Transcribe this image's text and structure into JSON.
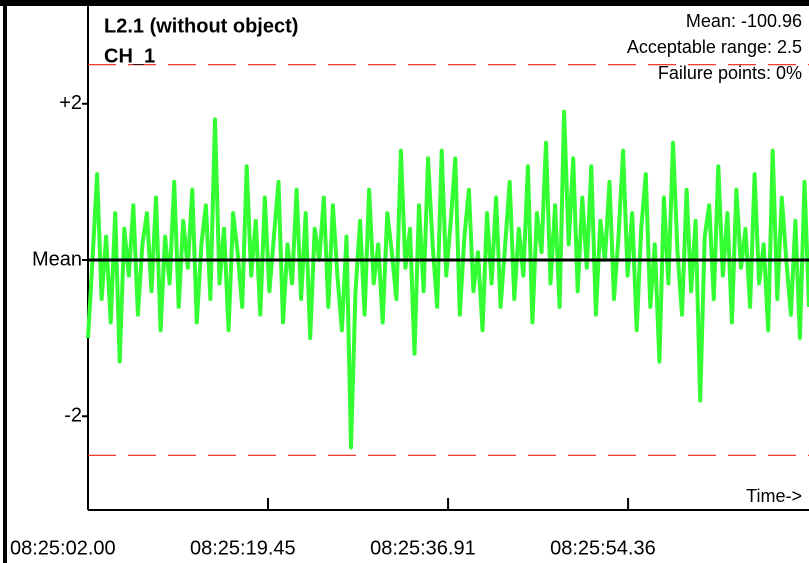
{
  "chart_data": {
    "type": "line",
    "title": "L2.1 (without object)",
    "subtitle": "CH_1",
    "annotations": [
      "Mean: -100.96",
      "Acceptable range: 2.5",
      "Failure points: 0%"
    ],
    "x_label": "Time->",
    "xlim": [
      0,
      69.9
    ],
    "xticks": [
      {
        "value": 0,
        "label": "08:25:02.00"
      },
      {
        "value": 17.45,
        "label": "08:25:19.45"
      },
      {
        "value": 34.91,
        "label": "08:25:36.91"
      },
      {
        "value": 52.36,
        "label": "08:25:54.36"
      }
    ],
    "ylim": [
      -3.2,
      3.2
    ],
    "yticks": [
      {
        "value": 2,
        "label": "+2"
      },
      {
        "value": 0,
        "label": "Mean"
      },
      {
        "value": -2,
        "label": "-2"
      }
    ],
    "limit_lines": [
      2.5,
      -2.5
    ],
    "limit_color": "#e8201c",
    "mean_line": 0,
    "mean_color": "#000000",
    "series": [
      {
        "name": "CH_1",
        "color": "#33ff33",
        "values": [
          -1.0,
          0.0,
          1.1,
          -0.5,
          0.3,
          -0.8,
          0.6,
          -1.3,
          0.4,
          -0.2,
          0.7,
          -0.7,
          0.2,
          0.6,
          -0.4,
          0.8,
          -0.9,
          0.3,
          -0.3,
          1.0,
          -0.6,
          0.5,
          -0.1,
          0.9,
          -0.8,
          0.2,
          0.7,
          -0.5,
          1.8,
          -0.3,
          0.4,
          -0.9,
          0.6,
          0.1,
          -0.6,
          1.2,
          -0.2,
          0.5,
          -0.7,
          0.8,
          -0.4,
          0.3,
          1.0,
          -0.8,
          0.2,
          -0.3,
          0.9,
          -0.5,
          0.6,
          -1.0,
          0.4,
          0.0,
          0.8,
          -0.6,
          0.7,
          -0.2,
          -0.9,
          0.3,
          -2.4,
          -0.4,
          0.5,
          -0.7,
          0.9,
          -0.3,
          0.2,
          -0.8,
          0.6,
          0.1,
          -0.5,
          1.4,
          -0.1,
          0.4,
          -1.2,
          0.7,
          -0.4,
          1.3,
          0.2,
          -0.6,
          1.4,
          -0.2,
          0.5,
          1.3,
          -0.7,
          0.3,
          0.9,
          -0.4,
          0.1,
          -0.9,
          0.6,
          -0.3,
          0.8,
          -0.6,
          0.2,
          1.0,
          -0.5,
          0.4,
          -0.2,
          1.2,
          -0.8,
          0.6,
          0.1,
          1.5,
          -0.3,
          0.7,
          -0.6,
          1.9,
          0.2,
          1.3,
          -0.4,
          0.8,
          -0.1,
          1.2,
          -0.7,
          0.5,
          0.0,
          1.0,
          -0.5,
          0.3,
          1.4,
          -0.2,
          0.6,
          -0.9,
          0.4,
          1.1,
          -0.6,
          0.2,
          -1.3,
          0.8,
          -0.3,
          1.5,
          0.1,
          -0.7,
          0.9,
          -0.4,
          0.5,
          -1.8,
          0.3,
          0.7,
          -0.5,
          1.2,
          -0.2,
          0.6,
          -0.8,
          0.9,
          -0.1,
          0.4,
          -0.6,
          1.1,
          -0.3,
          0.2,
          -0.9,
          1.4,
          -0.5,
          0.8,
          0.0,
          -0.7,
          0.5,
          -1.0,
          1.0,
          -0.6
        ]
      }
    ]
  }
}
